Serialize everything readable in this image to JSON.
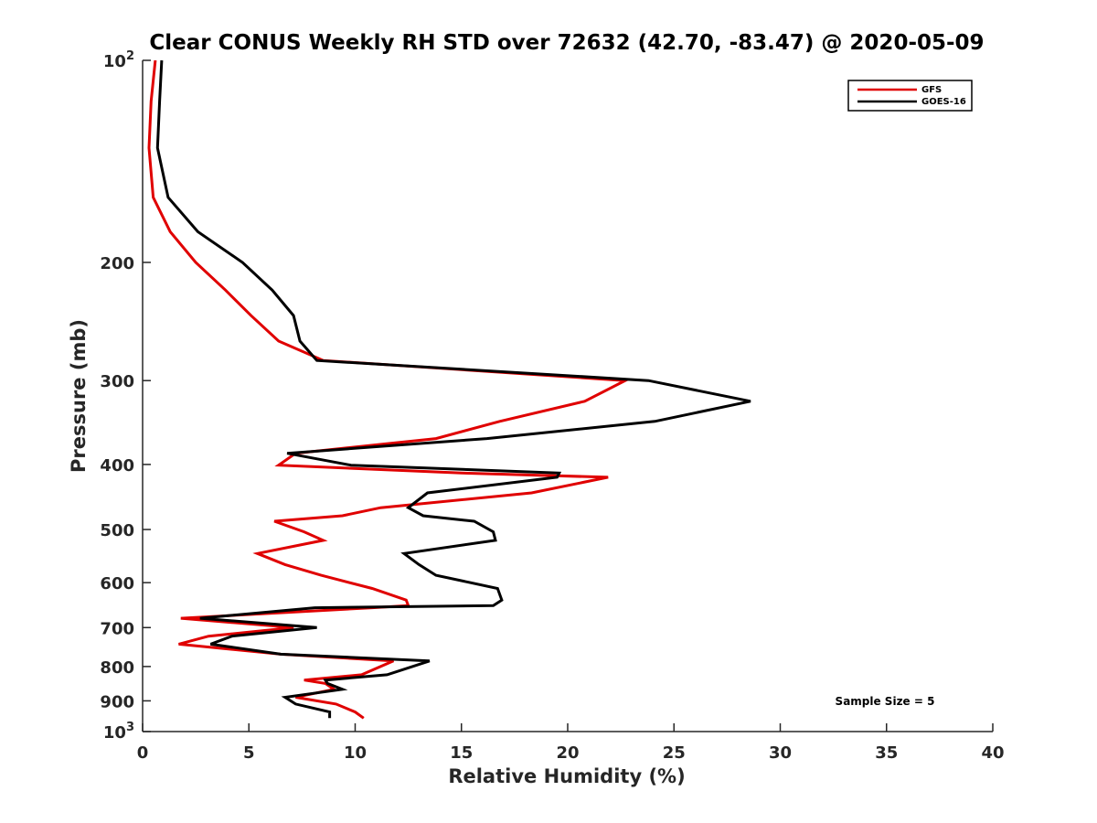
{
  "chart_data": {
    "type": "line",
    "title": "Clear CONUS Weekly RH STD over 72632 (42.70, -83.47) @ 2020-05-09",
    "xlabel": "Relative Humidity (%)",
    "ylabel": "Pressure (mb)",
    "xlim": [
      0,
      40
    ],
    "ylim": [
      100,
      1000
    ],
    "y_scale": "log",
    "y_reversed": true,
    "x_ticks": [
      "0",
      "5",
      "10",
      "15",
      "20",
      "25",
      "30",
      "35",
      "40"
    ],
    "y_ticks": [
      {
        "value": 100,
        "base": "10",
        "exp": "2"
      },
      {
        "value": 200,
        "label": "200"
      },
      {
        "value": 300,
        "label": "300"
      },
      {
        "value": 400,
        "label": "400"
      },
      {
        "value": 500,
        "label": "500"
      },
      {
        "value": 600,
        "label": "600"
      },
      {
        "value": 700,
        "label": "700"
      },
      {
        "value": 800,
        "label": "800"
      },
      {
        "value": 900,
        "label": "900"
      },
      {
        "value": 1000,
        "base": "10",
        "exp": "3"
      }
    ],
    "legend_position": "top-right",
    "grid": false,
    "annotation": "Sample Size = 5",
    "series": [
      {
        "name": "GFS",
        "color": "#e00000",
        "points": [
          [
            0.6,
            100
          ],
          [
            0.4,
            115
          ],
          [
            0.3,
            135
          ],
          [
            0.5,
            160
          ],
          [
            1.3,
            180
          ],
          [
            2.5,
            200
          ],
          [
            3.9,
            220
          ],
          [
            5.1,
            240
          ],
          [
            6.4,
            262
          ],
          [
            8.5,
            280
          ],
          [
            22.7,
            300
          ],
          [
            20.8,
            322
          ],
          [
            16.8,
            345
          ],
          [
            13.8,
            366
          ],
          [
            7.2,
            385
          ],
          [
            6.4,
            401
          ],
          [
            15.0,
            412
          ],
          [
            21.9,
            418
          ],
          [
            18.3,
            441
          ],
          [
            11.2,
            464
          ],
          [
            9.4,
            477
          ],
          [
            6.2,
            486
          ],
          [
            7.6,
            504
          ],
          [
            8.5,
            519
          ],
          [
            5.4,
            543
          ],
          [
            6.7,
            564
          ],
          [
            8.4,
            585
          ],
          [
            10.8,
            612
          ],
          [
            12.4,
            637
          ],
          [
            12.5,
            649
          ],
          [
            10.8,
            654
          ],
          [
            1.8,
            678
          ],
          [
            7.1,
            700
          ],
          [
            3.1,
            721
          ],
          [
            1.7,
            741
          ],
          [
            6.5,
            767
          ],
          [
            11.8,
            785
          ],
          [
            10.3,
            823
          ],
          [
            7.6,
            838
          ],
          [
            8.6,
            848
          ],
          [
            9.0,
            865
          ],
          [
            7.2,
            889
          ],
          [
            9.1,
            910
          ],
          [
            10.0,
            935
          ],
          [
            10.4,
            955
          ]
        ]
      },
      {
        "name": "GOES-16",
        "color": "#000000",
        "points": [
          [
            0.9,
            100
          ],
          [
            0.8,
            115
          ],
          [
            0.7,
            135
          ],
          [
            1.2,
            160
          ],
          [
            2.6,
            180
          ],
          [
            4.7,
            200
          ],
          [
            6.1,
            220
          ],
          [
            7.1,
            240
          ],
          [
            7.4,
            262
          ],
          [
            8.2,
            280
          ],
          [
            23.8,
            300
          ],
          [
            28.6,
            322
          ],
          [
            24.1,
            345
          ],
          [
            16.2,
            366
          ],
          [
            6.8,
            385
          ],
          [
            9.8,
            401
          ],
          [
            19.6,
            412
          ],
          [
            19.5,
            418
          ],
          [
            13.4,
            441
          ],
          [
            12.5,
            464
          ],
          [
            13.2,
            477
          ],
          [
            15.6,
            486
          ],
          [
            16.5,
            504
          ],
          [
            16.6,
            519
          ],
          [
            12.3,
            543
          ],
          [
            13.0,
            564
          ],
          [
            13.8,
            585
          ],
          [
            16.7,
            612
          ],
          [
            16.9,
            637
          ],
          [
            16.5,
            649
          ],
          [
            8.1,
            654
          ],
          [
            2.7,
            678
          ],
          [
            8.2,
            700
          ],
          [
            4.2,
            721
          ],
          [
            3.2,
            741
          ],
          [
            6.5,
            767
          ],
          [
            13.5,
            785
          ],
          [
            11.5,
            823
          ],
          [
            8.6,
            838
          ],
          [
            8.7,
            848
          ],
          [
            9.4,
            865
          ],
          [
            6.7,
            889
          ],
          [
            7.2,
            910
          ],
          [
            8.8,
            935
          ],
          [
            8.8,
            955
          ]
        ]
      }
    ]
  }
}
